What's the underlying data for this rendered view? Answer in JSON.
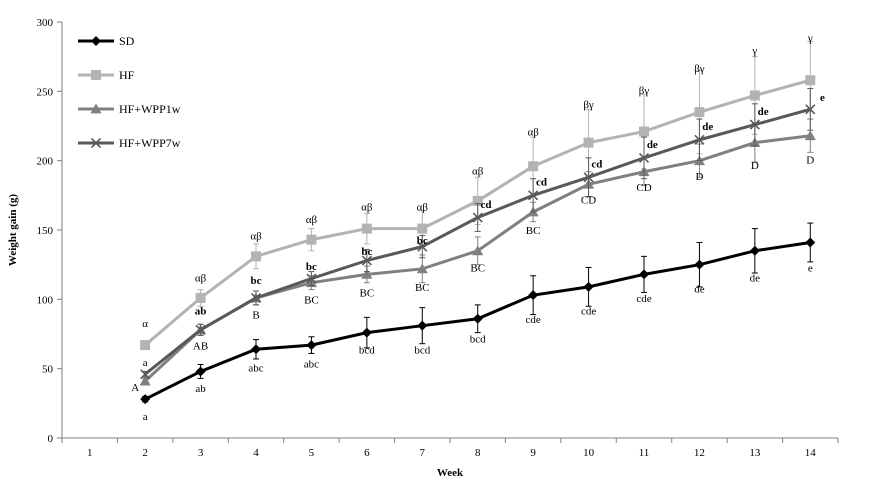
{
  "chart_data": {
    "type": "line",
    "title": "",
    "xlabel": "Week",
    "ylabel": "Weight gain (g)",
    "x": [
      1,
      2,
      3,
      4,
      5,
      6,
      7,
      8,
      9,
      10,
      11,
      12,
      13,
      14
    ],
    "x_ticks": [
      "1",
      "2",
      "3",
      "4",
      "5",
      "6",
      "7",
      "8",
      "9",
      "10",
      "11",
      "12",
      "13",
      "14"
    ],
    "y_ticks": [
      "0",
      "50",
      "100",
      "150",
      "200",
      "250",
      "300"
    ],
    "ylim": [
      0,
      300
    ],
    "grid": false,
    "legend_position": "top-left",
    "series": [
      {
        "name": "SD",
        "color": "#000000",
        "marker": "diamond",
        "x": [
          2,
          3,
          4,
          5,
          6,
          7,
          8,
          9,
          10,
          11,
          12,
          13,
          14
        ],
        "values": [
          28,
          48,
          64,
          67,
          76,
          81,
          86,
          103,
          109,
          118,
          125,
          135,
          141
        ],
        "error": [
          2,
          5,
          7,
          6,
          11,
          13,
          10,
          14,
          14,
          13,
          16,
          16,
          14
        ]
      },
      {
        "name": "HF",
        "color": "#b3b3b3",
        "marker": "square",
        "x": [
          2,
          3,
          4,
          5,
          6,
          7,
          8,
          9,
          10,
          11,
          12,
          13,
          14
        ],
        "values": [
          67,
          101,
          131,
          143,
          151,
          151,
          171,
          196,
          213,
          221,
          235,
          247,
          258
        ],
        "error": [
          3,
          6,
          9,
          8,
          11,
          13,
          17,
          21,
          24,
          27,
          30,
          28,
          28
        ]
      },
      {
        "name": "HF+WPP1w",
        "color": "#808080",
        "marker": "triangle",
        "x": [
          2,
          3,
          4,
          5,
          6,
          7,
          8,
          9,
          10,
          11,
          12,
          13,
          14
        ],
        "values": [
          41,
          78,
          101,
          112,
          118,
          122,
          135,
          163,
          183,
          192,
          200,
          213,
          218
        ],
        "error": [
          2,
          4,
          5,
          5,
          6,
          10,
          10,
          7,
          9,
          10,
          12,
          14,
          12
        ]
      },
      {
        "name": "HF+WPP7w",
        "color": "#595959",
        "marker": "x",
        "x": [
          2,
          3,
          4,
          5,
          6,
          7,
          8,
          9,
          10,
          11,
          12,
          13,
          14
        ],
        "values": [
          46,
          78,
          101,
          115,
          128,
          138,
          159,
          175,
          188,
          202,
          215,
          226,
          237
        ],
        "error": [
          2,
          4,
          5,
          5,
          8,
          8,
          10,
          12,
          14,
          15,
          15,
          15,
          15
        ]
      }
    ],
    "annotations": [
      {
        "text": "α",
        "x": 2,
        "y": 80,
        "color": "#000000",
        "bold": false
      },
      {
        "text": "a",
        "x": 2,
        "y": 52,
        "color": "#000000",
        "bold": false
      },
      {
        "text": "A",
        "x": 1.82,
        "y": 34,
        "color": "#000000",
        "bold": false
      },
      {
        "text": "a",
        "x": 2,
        "y": 13,
        "color": "#000000",
        "bold": false
      },
      {
        "text": "αβ",
        "x": 3,
        "y": 113,
        "color": "#000000",
        "bold": false
      },
      {
        "text": "ab",
        "x": 3,
        "y": 89,
        "color": "#000000",
        "bold": true
      },
      {
        "text": "AB",
        "x": 3,
        "y": 64,
        "color": "#000000",
        "bold": false
      },
      {
        "text": "ab",
        "x": 3,
        "y": 33,
        "color": "#000000",
        "bold": false
      },
      {
        "text": "αβ",
        "x": 4,
        "y": 143,
        "color": "#000000",
        "bold": false
      },
      {
        "text": "bc",
        "x": 4,
        "y": 111,
        "color": "#000000",
        "bold": true
      },
      {
        "text": "B",
        "x": 4,
        "y": 86,
        "color": "#000000",
        "bold": false
      },
      {
        "text": "abc",
        "x": 4,
        "y": 48,
        "color": "#000000",
        "bold": false
      },
      {
        "text": "αβ",
        "x": 5,
        "y": 155,
        "color": "#000000",
        "bold": false
      },
      {
        "text": "bc",
        "x": 5,
        "y": 121,
        "color": "#000000",
        "bold": true
      },
      {
        "text": "BC",
        "x": 5,
        "y": 97,
        "color": "#000000",
        "bold": false
      },
      {
        "text": "abc",
        "x": 5,
        "y": 51,
        "color": "#000000",
        "bold": false
      },
      {
        "text": "αβ",
        "x": 6,
        "y": 164,
        "color": "#000000",
        "bold": false
      },
      {
        "text": "bc",
        "x": 6,
        "y": 132,
        "color": "#000000",
        "bold": true
      },
      {
        "text": "BC",
        "x": 6,
        "y": 102,
        "color": "#000000",
        "bold": false
      },
      {
        "text": "bcd",
        "x": 6,
        "y": 61,
        "color": "#000000",
        "bold": false
      },
      {
        "text": "αβ",
        "x": 7,
        "y": 164,
        "color": "#000000",
        "bold": false
      },
      {
        "text": "bc",
        "x": 7,
        "y": 140,
        "color": "#000000",
        "bold": true
      },
      {
        "text": "BC",
        "x": 7,
        "y": 106,
        "color": "#000000",
        "bold": false
      },
      {
        "text": "bcd",
        "x": 7,
        "y": 61,
        "color": "#000000",
        "bold": false
      },
      {
        "text": "αβ",
        "x": 8,
        "y": 190,
        "color": "#000000",
        "bold": false
      },
      {
        "text": "cd",
        "x": 8.15,
        "y": 166,
        "color": "#000000",
        "bold": true
      },
      {
        "text": "BC",
        "x": 8,
        "y": 120,
        "color": "#000000",
        "bold": false
      },
      {
        "text": "bcd",
        "x": 8,
        "y": 69,
        "color": "#000000",
        "bold": false
      },
      {
        "text": "αβ",
        "x": 9,
        "y": 218,
        "color": "#000000",
        "bold": false
      },
      {
        "text": "cd",
        "x": 9.15,
        "y": 182,
        "color": "#000000",
        "bold": true
      },
      {
        "text": "BC",
        "x": 9,
        "y": 147,
        "color": "#000000",
        "bold": false
      },
      {
        "text": "cde",
        "x": 9,
        "y": 83,
        "color": "#000000",
        "bold": false
      },
      {
        "text": "βγ",
        "x": 10,
        "y": 238,
        "color": "#000000",
        "bold": false
      },
      {
        "text": "cd",
        "x": 10.15,
        "y": 195,
        "color": "#000000",
        "bold": true
      },
      {
        "text": "CD",
        "x": 10,
        "y": 169,
        "color": "#000000",
        "bold": false
      },
      {
        "text": "cde",
        "x": 10,
        "y": 89,
        "color": "#000000",
        "bold": false
      },
      {
        "text": "βγ",
        "x": 11,
        "y": 248,
        "color": "#000000",
        "bold": false
      },
      {
        "text": "de",
        "x": 11.15,
        "y": 209,
        "color": "#000000",
        "bold": true
      },
      {
        "text": "CD",
        "x": 11,
        "y": 178,
        "color": "#000000",
        "bold": false
      },
      {
        "text": "cde",
        "x": 11,
        "y": 98,
        "color": "#000000",
        "bold": false
      },
      {
        "text": "βγ",
        "x": 12,
        "y": 264,
        "color": "#000000",
        "bold": false
      },
      {
        "text": "de",
        "x": 12.15,
        "y": 222,
        "color": "#000000",
        "bold": true
      },
      {
        "text": "D",
        "x": 12,
        "y": 186,
        "color": "#000000",
        "bold": false
      },
      {
        "text": "de",
        "x": 12,
        "y": 105,
        "color": "#000000",
        "bold": false
      },
      {
        "text": "γ",
        "x": 13,
        "y": 277,
        "color": "#000000",
        "bold": false
      },
      {
        "text": "de",
        "x": 13.15,
        "y": 233,
        "color": "#000000",
        "bold": true
      },
      {
        "text": "D",
        "x": 13,
        "y": 194,
        "color": "#000000",
        "bold": false
      },
      {
        "text": "de",
        "x": 13,
        "y": 113,
        "color": "#000000",
        "bold": false
      },
      {
        "text": "γ",
        "x": 14,
        "y": 286,
        "color": "#000000",
        "bold": false
      },
      {
        "text": "e",
        "x": 14.22,
        "y": 243,
        "color": "#000000",
        "bold": true
      },
      {
        "text": "D",
        "x": 14,
        "y": 198,
        "color": "#000000",
        "bold": false
      },
      {
        "text": "e",
        "x": 14,
        "y": 120,
        "color": "#000000",
        "bold": false
      }
    ]
  }
}
